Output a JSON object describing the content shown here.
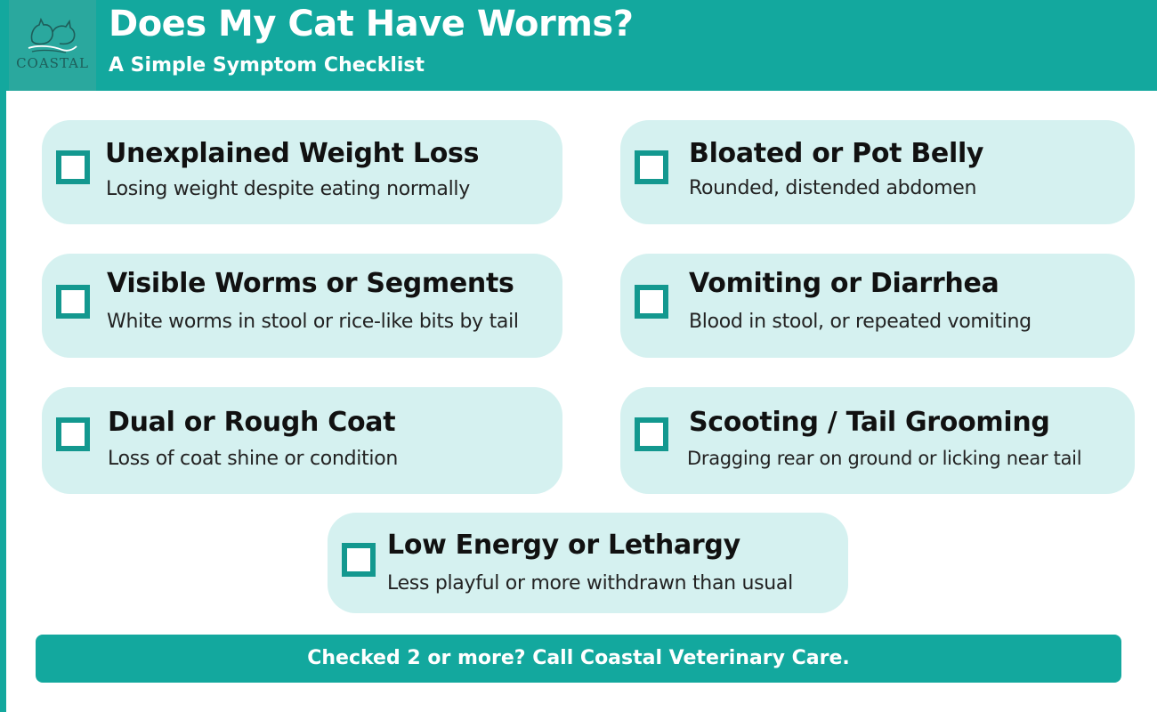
{
  "header": {
    "logo_text": "COASTAL",
    "title": "Does My Cat Have Worms?",
    "subtitle": "A Simple Symptom Checklist"
  },
  "checklist": [
    {
      "title": "Unexplained Weight Loss",
      "description": "Losing weight despite eating normally",
      "checked": false
    },
    {
      "title": "Bloated or Pot Belly",
      "description": "Rounded, distended abdomen",
      "checked": false
    },
    {
      "title": "Visible Worms or Segments",
      "description": "White worms in stool or rice-like bits by tail",
      "checked": false
    },
    {
      "title": "Vomiting or Diarrhea",
      "description": "Blood in stool, or repeated vomiting",
      "checked": false
    },
    {
      "title": "Dual or Rough Coat",
      "description": "Loss of coat shine or condition",
      "checked": false
    },
    {
      "title": "Scooting / Tail Grooming",
      "description": "Dragging rear on ground or licking near tail",
      "checked": false
    },
    {
      "title": "Low Energy or Lethargy",
      "description": "Less playful or more withdrawn than usual",
      "checked": false
    }
  ],
  "footer": {
    "text": "Checked 2 or more? Call Coastal Veterinary Care."
  },
  "colors": {
    "brand_teal": "#13a89e",
    "card_background": "#d5f1f0",
    "checkbox_border": "#13988f"
  },
  "icons": {
    "logo": "cat-and-dog-outline-logo",
    "checkbox": "empty-checkbox-icon"
  }
}
